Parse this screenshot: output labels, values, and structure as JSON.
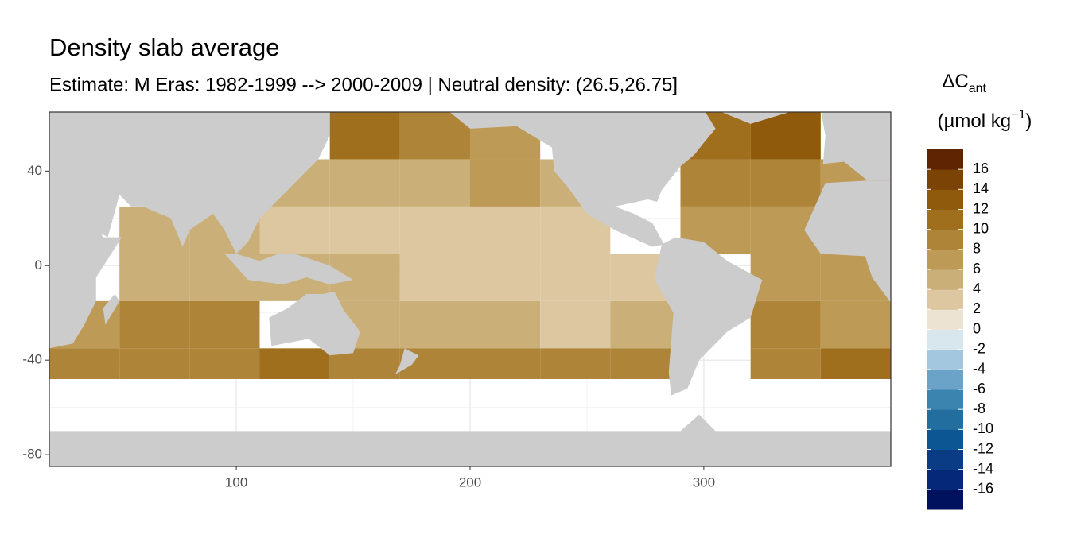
{
  "chart_data": {
    "type": "map",
    "title": "Density slab average",
    "subtitle": "Estimate: M Eras: 1982-1999 --> 2000-2009 | Neutral density: (26.5,26.75]",
    "xlim": [
      20,
      380
    ],
    "ylim": [
      -85,
      65
    ],
    "xticks": [
      100,
      200,
      300
    ],
    "yticks": [
      -80,
      -40,
      0,
      40
    ],
    "grid": true,
    "lon_edges": [
      20,
      50,
      80,
      110,
      140,
      170,
      200,
      230,
      260,
      290,
      320,
      350,
      380
    ],
    "lat_edges": [
      65,
      45,
      25,
      5,
      -15,
      -35,
      -48
    ],
    "values": [
      [
        null,
        null,
        null,
        null,
        10,
        9,
        7,
        null,
        null,
        10,
        12,
        null
      ],
      [
        null,
        null,
        null,
        4,
        5,
        4,
        6,
        4,
        null,
        8,
        8,
        6
      ],
      [
        null,
        4,
        4,
        2,
        2,
        2,
        3,
        3,
        null,
        6,
        6,
        null
      ],
      [
        null,
        5,
        5,
        4,
        4,
        3,
        3,
        3,
        2,
        null,
        6,
        6
      ],
      [
        6,
        8,
        8,
        null,
        5,
        4,
        4,
        2,
        4,
        null,
        8,
        7
      ],
      [
        9,
        9,
        9,
        10,
        9,
        8,
        8,
        9,
        9,
        null,
        9,
        10
      ]
    ],
    "legend": {
      "title": [
        "ΔC",
        "ant",
        "(µmol kg",
        "−1",
        ")"
      ],
      "lim": [
        -18,
        18
      ],
      "ticks": [
        16,
        14,
        12,
        10,
        8,
        6,
        4,
        2,
        0,
        -2,
        -4,
        -6,
        -8,
        -10,
        -12,
        -14,
        -16
      ],
      "colors": [
        "#00125e",
        "#062878",
        "#0a3c86",
        "#0b5693",
        "#216e9f",
        "#3c84b0",
        "#6aa3c7",
        "#a3c7de",
        "#d8e6ee",
        "#ece3d2",
        "#dcc7a0",
        "#cbaf78",
        "#bd9a56",
        "#ae8438",
        "#a06f1e",
        "#8f5a0c",
        "#7b4306",
        "#5f2503"
      ]
    }
  }
}
